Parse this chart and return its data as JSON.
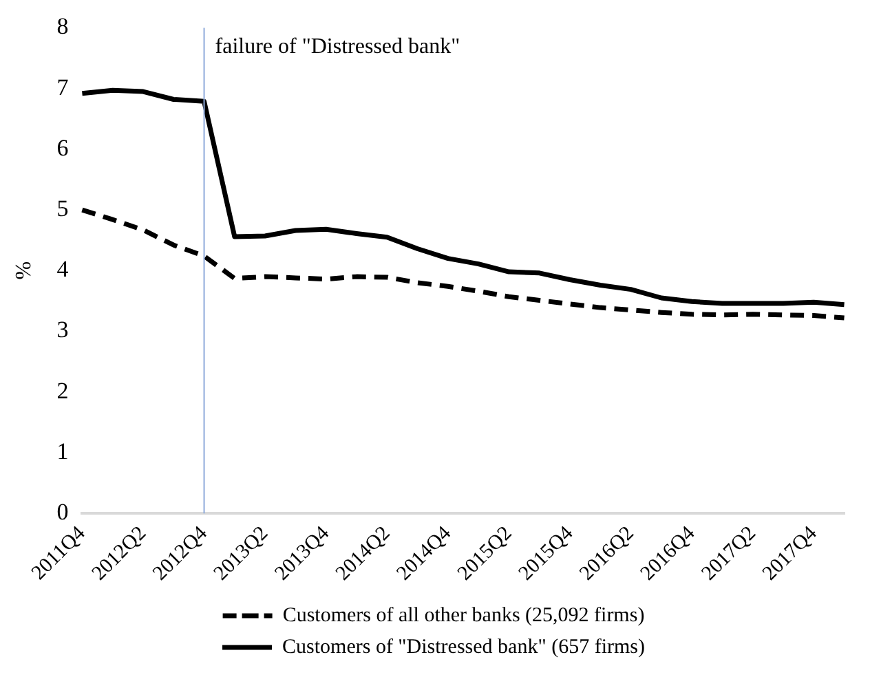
{
  "chart_data": {
    "type": "line",
    "ylabel": "%",
    "categories": [
      "2011Q4",
      null,
      "2012Q2",
      null,
      "2012Q4",
      null,
      "2013Q2",
      null,
      "2013Q4",
      null,
      "2014Q2",
      null,
      "2014Q4",
      null,
      "2015Q2",
      null,
      "2015Q4",
      null,
      "2016Q2",
      null,
      "2016Q4",
      null,
      "2017Q2",
      null,
      "2017Q4",
      null
    ],
    "series": [
      {
        "name": "Customers of all other banks (25,092 firms)",
        "color": "#000000",
        "line_style": "dashed",
        "values": [
          5.0,
          4.84,
          4.67,
          4.42,
          4.24,
          3.87,
          3.9,
          3.88,
          3.86,
          3.9,
          3.89,
          3.8,
          3.74,
          3.66,
          3.57,
          3.51,
          3.45,
          3.39,
          3.35,
          3.31,
          3.28,
          3.27,
          3.28,
          3.27,
          3.26,
          3.22
        ]
      },
      {
        "name": "Customers of \"Distressed bank\" (657 firms)",
        "color": "#000000",
        "line_style": "solid",
        "values": [
          6.92,
          6.97,
          6.95,
          6.82,
          6.79,
          4.56,
          4.57,
          4.66,
          4.68,
          4.61,
          4.55,
          4.36,
          4.2,
          4.11,
          3.98,
          3.96,
          3.85,
          3.76,
          3.69,
          3.55,
          3.49,
          3.46,
          3.46,
          3.46,
          3.48,
          3.44
        ]
      }
    ],
    "ylim": [
      0,
      8
    ],
    "yticks": [
      0,
      1,
      2,
      3,
      4,
      5,
      6,
      7,
      8
    ],
    "ref_lines": [
      {
        "axis": "x",
        "value": "2012Q4",
        "label": "failure of \"Distressed bank\"",
        "color": "#8eaadb"
      }
    ],
    "grid": false,
    "legend": "bottom",
    "marker": "none"
  }
}
